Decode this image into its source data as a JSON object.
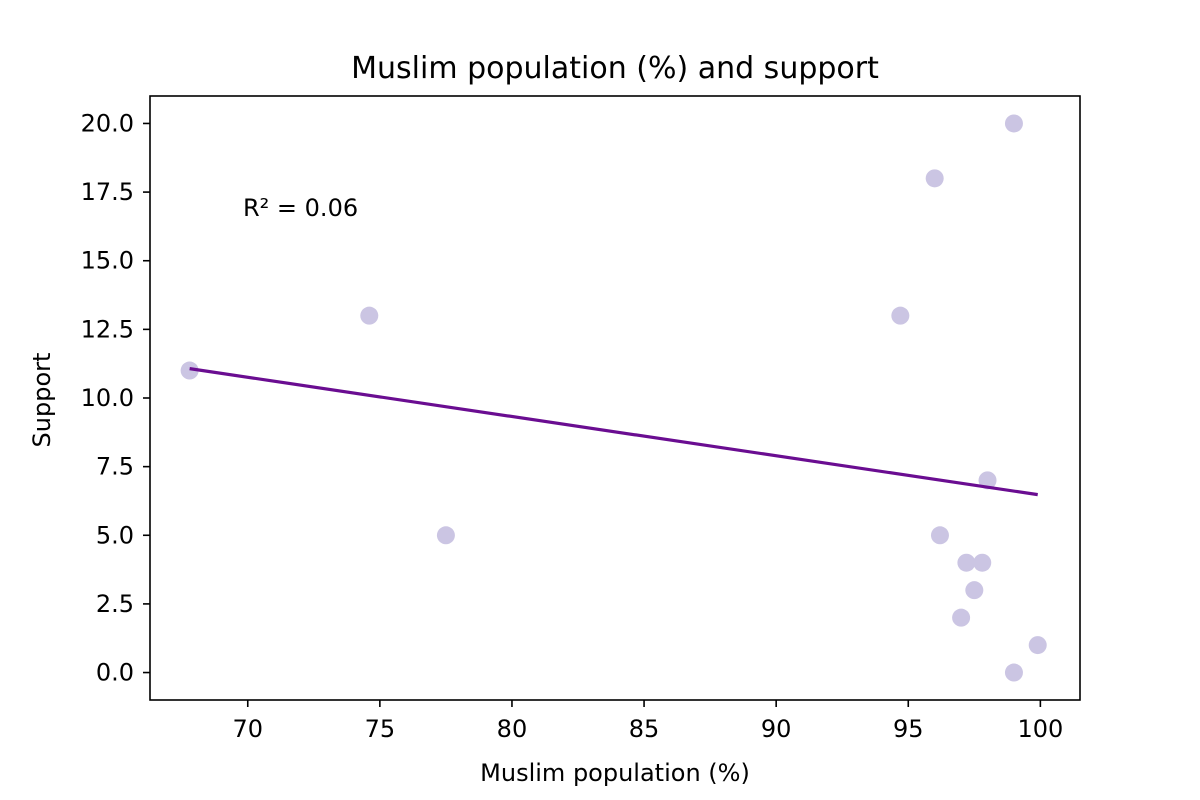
{
  "chart_data": {
    "type": "scatter",
    "title": "Muslim population (%) and support",
    "xlabel": "Muslim population (%)",
    "ylabel": "Support",
    "xlim": [
      66.3,
      101.5
    ],
    "ylim": [
      -1.0,
      21.0
    ],
    "xticks": [
      70,
      75,
      80,
      85,
      90,
      95,
      100
    ],
    "yticks": [
      0.0,
      2.5,
      5.0,
      7.5,
      10.0,
      12.5,
      15.0,
      17.5,
      20.0
    ],
    "xtick_labels": [
      "70",
      "75",
      "80",
      "85",
      "90",
      "95",
      "100"
    ],
    "ytick_labels": [
      "0.0",
      "2.5",
      "5.0",
      "7.5",
      "10.0",
      "12.5",
      "15.0",
      "17.5",
      "20.0"
    ],
    "grid": false,
    "annotation": "R² = 0.06",
    "points": [
      {
        "x": 67.8,
        "y": 11.0
      },
      {
        "x": 74.6,
        "y": 13.0
      },
      {
        "x": 77.5,
        "y": 5.0
      },
      {
        "x": 94.7,
        "y": 13.0
      },
      {
        "x": 96.0,
        "y": 18.0
      },
      {
        "x": 96.2,
        "y": 5.0
      },
      {
        "x": 97.0,
        "y": 2.0
      },
      {
        "x": 97.2,
        "y": 4.0
      },
      {
        "x": 97.5,
        "y": 3.0
      },
      {
        "x": 97.8,
        "y": 4.0
      },
      {
        "x": 98.0,
        "y": 7.0
      },
      {
        "x": 99.0,
        "y": 20.0
      },
      {
        "x": 99.0,
        "y": 0.0
      },
      {
        "x": 99.9,
        "y": 1.0
      }
    ],
    "trend_line": {
      "x": [
        67.8,
        99.9
      ],
      "y": [
        11.07,
        6.48
      ]
    },
    "colors": {
      "points": "#cbc5e3",
      "trend_line": "#6a0d91",
      "axes": "#000000"
    }
  }
}
